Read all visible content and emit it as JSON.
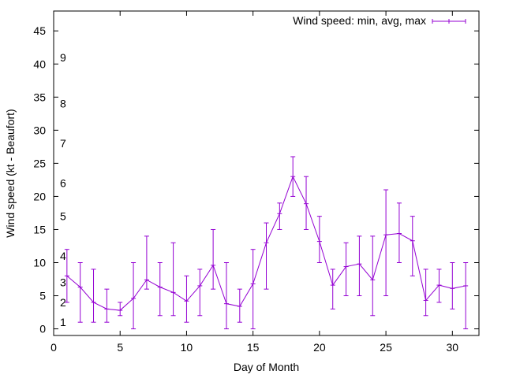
{
  "chart_data": {
    "type": "line",
    "xlabel": "Day of Month",
    "ylabel": "Wind speed (kt - Beaufort)",
    "xlim": [
      0,
      32
    ],
    "ylim": [
      -1,
      48
    ],
    "xticks": [
      0,
      5,
      10,
      15,
      20,
      25,
      30
    ],
    "yticks": [
      0,
      5,
      10,
      15,
      20,
      25,
      30,
      35,
      40,
      45
    ],
    "grid": false,
    "legend_position": "top-right",
    "beaufort_scale": [
      {
        "label": "1",
        "value": 1
      },
      {
        "label": "2",
        "value": 4
      },
      {
        "label": "3",
        "value": 7
      },
      {
        "label": "4",
        "value": 11
      },
      {
        "label": "5",
        "value": 17
      },
      {
        "label": "6",
        "value": 22
      },
      {
        "label": "7",
        "value": 28
      },
      {
        "label": "8",
        "value": 34
      },
      {
        "label": "9",
        "value": 41
      }
    ],
    "series": [
      {
        "name": "Wind speed: min, avg, max",
        "color": "#9400d3",
        "x": [
          1,
          2,
          3,
          4,
          5,
          6,
          7,
          8,
          9,
          10,
          11,
          12,
          13,
          14,
          15,
          16,
          17,
          18,
          19,
          20,
          21,
          22,
          23,
          24,
          25,
          26,
          27,
          28,
          29,
          30,
          31
        ],
        "avg": [
          8,
          6.3,
          4,
          3,
          2.8,
          4.6,
          7.4,
          6.3,
          5.5,
          4.2,
          6.5,
          9.6,
          3.8,
          3.4,
          6.8,
          13,
          17.4,
          23,
          18.9,
          13.2,
          6.6,
          9.4,
          9.8,
          7.4,
          14.2,
          14.4,
          13.3,
          4.3,
          6.6,
          6.1,
          6.5
        ],
        "min": [
          4,
          1,
          1,
          1,
          2,
          0,
          6,
          2,
          2,
          1,
          2,
          6,
          0,
          1,
          0,
          6,
          15,
          20,
          15,
          10,
          3,
          5,
          5,
          2,
          5,
          10,
          8,
          2,
          4,
          3,
          0
        ],
        "max": [
          12,
          10,
          9,
          6,
          4,
          10,
          14,
          10,
          13,
          8,
          9,
          15,
          10,
          6,
          12,
          16,
          19,
          26,
          23,
          17,
          9,
          13,
          14,
          14,
          21,
          19,
          17,
          9,
          9,
          10,
          10
        ]
      }
    ]
  }
}
